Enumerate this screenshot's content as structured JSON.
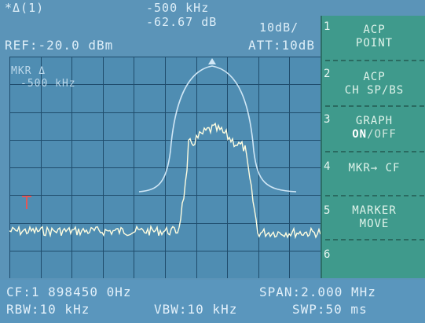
{
  "header": {
    "marker_label": "*Δ(1)",
    "marker_freq": "-500 kHz",
    "marker_level": "-62.67 dB",
    "scale": "10dB/",
    "ref_level": "REF:-20.0 dBm",
    "atten": "ATT:10dB",
    "marker_note_1": "MKR Δ",
    "marker_note_2": "-500 kHz"
  },
  "softkeys": {
    "numbers": [
      "1",
      "2",
      "3",
      "4",
      "5",
      "6"
    ],
    "acp_point": [
      "ACP",
      "POINT"
    ],
    "acp_ch_sp": [
      "ACP",
      "CH SP/BS"
    ],
    "graph_label": "GRAPH",
    "graph_on": "ON",
    "graph_off": "/OFF",
    "mkr_to_cf": "MKR→ CF",
    "marker_move": [
      "MARKER",
      "MOVE"
    ]
  },
  "footer": {
    "cf": "CF:1 898450 0Hz",
    "span": "SPAN:2.000 MHz",
    "rbw": "RBW:10 kHz",
    "vbw": "VBW:10 kHz",
    "swp": "SWP:50 ms"
  },
  "colors": {
    "screen_bg": "#5b94b8",
    "softkey_bg": "#3f9a8c",
    "grid": "#1f4c6c",
    "trace": "#fffde0",
    "mask": "#cfe6f5",
    "marker": "#e05858"
  }
}
